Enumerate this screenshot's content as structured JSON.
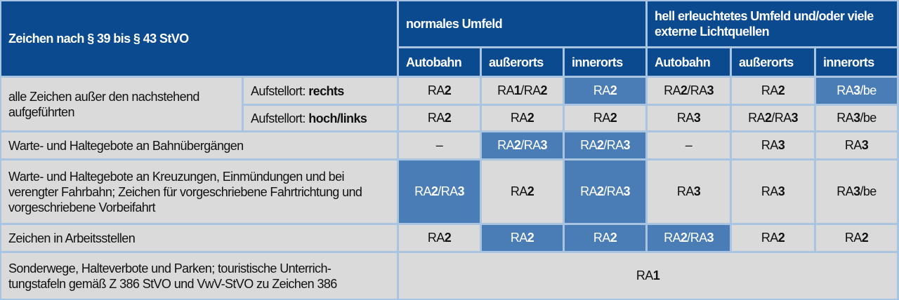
{
  "header": {
    "title": "Zeichen nach § 39 bis § 43 StVO",
    "group_normal": "normales Umfeld",
    "group_bright": "hell erleuchtetes Umfeld und/oder viele externe Lichtquellen",
    "columns": [
      "Autobahn",
      "außerorts",
      "innerorts",
      "Autobahn",
      "außerorts",
      "innerorts"
    ]
  },
  "colors": {
    "header": "#0b4a8e",
    "highlight": "#4a7db5",
    "cell": "#dadada",
    "grid": "#a9c4e0"
  },
  "rows": [
    {
      "label": "alle Zeichen außer den nachstehend aufgeführten",
      "sub": [
        {
          "prefix": "Aufstellort: ",
          "bold": "rechts",
          "cells": [
            {
              "hl": false,
              "parts": [
                [
                  "RA",
                  0
                ],
                [
                  "2",
                  1
                ]
              ]
            },
            {
              "hl": false,
              "parts": [
                [
                  "RA",
                  0
                ],
                [
                  "1",
                  1
                ],
                [
                  "/RA",
                  0
                ],
                [
                  "2",
                  1
                ]
              ]
            },
            {
              "hl": true,
              "parts": [
                [
                  "RA",
                  0
                ],
                [
                  "2",
                  1
                ]
              ]
            },
            {
              "hl": false,
              "parts": [
                [
                  "RA",
                  0
                ],
                [
                  "2",
                  1
                ],
                [
                  "/RA",
                  0
                ],
                [
                  "3",
                  1
                ]
              ]
            },
            {
              "hl": false,
              "parts": [
                [
                  "RA",
                  0
                ],
                [
                  "2",
                  1
                ]
              ]
            },
            {
              "hl": true,
              "parts": [
                [
                  "RA",
                  0
                ],
                [
                  "3",
                  1
                ],
                [
                  "/be",
                  0
                ]
              ]
            }
          ]
        },
        {
          "prefix": "Aufstellort: ",
          "bold": "hoch/links",
          "cells": [
            {
              "hl": false,
              "parts": [
                [
                  "RA",
                  0
                ],
                [
                  "2",
                  1
                ]
              ]
            },
            {
              "hl": false,
              "parts": [
                [
                  "RA",
                  0
                ],
                [
                  "2",
                  1
                ]
              ]
            },
            {
              "hl": false,
              "parts": [
                [
                  "RA",
                  0
                ],
                [
                  "2",
                  1
                ]
              ]
            },
            {
              "hl": false,
              "parts": [
                [
                  "RA",
                  0
                ],
                [
                  "3",
                  1
                ]
              ]
            },
            {
              "hl": false,
              "parts": [
                [
                  "RA",
                  0
                ],
                [
                  "2",
                  1
                ],
                [
                  "/RA",
                  0
                ],
                [
                  "3",
                  1
                ]
              ]
            },
            {
              "hl": false,
              "parts": [
                [
                  "RA",
                  0
                ],
                [
                  "3",
                  1
                ],
                [
                  "/be",
                  0
                ]
              ]
            }
          ]
        }
      ]
    },
    {
      "label": "Warte- und Haltegebote an Bahnübergängen",
      "cells": [
        {
          "hl": false,
          "parts": [
            [
              "–",
              0
            ]
          ]
        },
        {
          "hl": true,
          "parts": [
            [
              "RA",
              0
            ],
            [
              "2",
              1
            ],
            [
              "/RA",
              0
            ],
            [
              "3",
              1
            ]
          ]
        },
        {
          "hl": true,
          "parts": [
            [
              "RA",
              0
            ],
            [
              "2",
              1
            ],
            [
              "/RA",
              0
            ],
            [
              "3",
              1
            ]
          ]
        },
        {
          "hl": false,
          "parts": [
            [
              "–",
              0
            ]
          ]
        },
        {
          "hl": false,
          "parts": [
            [
              "RA",
              0
            ],
            [
              "3",
              1
            ]
          ]
        },
        {
          "hl": false,
          "parts": [
            [
              "RA",
              0
            ],
            [
              "3",
              1
            ]
          ]
        }
      ]
    },
    {
      "label": "Warte- und Haltegebote an Kreuzungen, Einmündungen und bei verengter Fahrbahn; Zeichen für vorgeschriebene Fahrtrichtung und vorgeschriebene Vorbeifahrt",
      "cells": [
        {
          "hl": true,
          "parts": [
            [
              "RA",
              0
            ],
            [
              "2",
              1
            ],
            [
              "/RA",
              0
            ],
            [
              "3",
              1
            ]
          ]
        },
        {
          "hl": false,
          "parts": [
            [
              "RA",
              0
            ],
            [
              "2",
              1
            ]
          ]
        },
        {
          "hl": true,
          "parts": [
            [
              "RA",
              0
            ],
            [
              "2",
              1
            ],
            [
              "/RA",
              0
            ],
            [
              "3",
              1
            ]
          ]
        },
        {
          "hl": false,
          "parts": [
            [
              "RA",
              0
            ],
            [
              "3",
              1
            ]
          ]
        },
        {
          "hl": false,
          "parts": [
            [
              "RA",
              0
            ],
            [
              "3",
              1
            ]
          ]
        },
        {
          "hl": false,
          "parts": [
            [
              "RA",
              0
            ],
            [
              "3",
              1
            ],
            [
              "/be",
              0
            ]
          ]
        }
      ]
    },
    {
      "label": "Zeichen in Arbeitsstellen",
      "cells": [
        {
          "hl": false,
          "parts": [
            [
              "RA",
              0
            ],
            [
              "2",
              1
            ]
          ]
        },
        {
          "hl": true,
          "parts": [
            [
              "RA",
              0
            ],
            [
              "2",
              1
            ]
          ]
        },
        {
          "hl": true,
          "parts": [
            [
              "RA",
              0
            ],
            [
              "2",
              1
            ]
          ]
        },
        {
          "hl": true,
          "parts": [
            [
              "RA",
              0
            ],
            [
              "2",
              1
            ],
            [
              "/RA",
              0
            ],
            [
              "3",
              1
            ]
          ]
        },
        {
          "hl": false,
          "parts": [
            [
              "RA",
              0
            ],
            [
              "2",
              1
            ]
          ]
        },
        {
          "hl": false,
          "parts": [
            [
              "RA",
              0
            ],
            [
              "2",
              1
            ]
          ]
        }
      ]
    },
    {
      "label": "Sonderwege, Halteverbote und Parken; touristische Unterrichtungstafeln gemäß Z 386 StVO und VwV-StVO zu Zeichen 386",
      "label_display": "Sonderwege, Halteverbote und Parken; touristische Unterrich-\ntungstafeln gemäß Z 386 StVO und VwV-StVO zu Zeichen 386",
      "merged": {
        "hl": false,
        "parts": [
          [
            "RA",
            0
          ],
          [
            "1",
            1
          ]
        ]
      }
    }
  ]
}
